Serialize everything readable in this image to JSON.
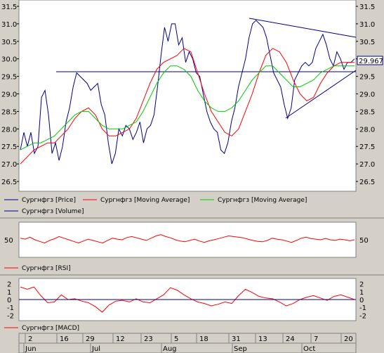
{
  "chart_data": [
    {
      "type": "line",
      "panel": "price",
      "ylim": [
        26.3,
        31.6
      ],
      "y_ticks": [
        "26.5",
        "27.0",
        "27.5",
        "28.0",
        "28.5",
        "29.0",
        "29.5",
        "30.0",
        "30.5",
        "31.0",
        "31.5"
      ],
      "last_value_label": "29.967",
      "grid": false,
      "legend_position": "bottom-left",
      "series": [
        {
          "name": "Сургнфгз [Price]",
          "color": "#00008b",
          "values": [
            27.4,
            27.9,
            27.5,
            27.9,
            27.3,
            27.5,
            28.9,
            29.1,
            28.4,
            27.3,
            27.6,
            27.1,
            27.5,
            28.2,
            28.6,
            29.2,
            29.6,
            29.5,
            29.4,
            29.3,
            29.1,
            29.2,
            29.3,
            28.7,
            28.4,
            27.6,
            27.0,
            27.3,
            28.0,
            27.8,
            28.1,
            28.0,
            27.7,
            27.9,
            28.2,
            27.6,
            28.0,
            28.1,
            28.4,
            29.2,
            30.1,
            30.9,
            30.5,
            31.0,
            31.0,
            30.4,
            30.6,
            29.9,
            30.2,
            30.0,
            29.6,
            29.5,
            29.0,
            28.5,
            28.2,
            28.0,
            27.9,
            27.4,
            27.3,
            27.6,
            28.2,
            28.6,
            29.2,
            29.6,
            30.0,
            30.6,
            31.0,
            31.1,
            31.0,
            30.9,
            30.6,
            30.1,
            29.6,
            29.4,
            29.2,
            28.7,
            28.3,
            28.6,
            29.4,
            29.6,
            29.8,
            29.9,
            29.8,
            29.9,
            30.3,
            30.5,
            30.7,
            30.4,
            30.0,
            29.8,
            30.2,
            30.0,
            29.7,
            29.9,
            29.9,
            30.0
          ]
        },
        {
          "name": "Сургнфгз [Moving Average]",
          "color": "#ff0000",
          "values": [
            27.0,
            27.2,
            27.4,
            27.5,
            27.6,
            27.6,
            27.8,
            28.0,
            28.3,
            28.5,
            28.6,
            28.4,
            28.0,
            27.8,
            27.8,
            27.9,
            28.0,
            28.3,
            28.8,
            29.3,
            29.7,
            29.9,
            30.0,
            30.1,
            30.3,
            30.2,
            29.6,
            29.0,
            28.5,
            28.2,
            27.9,
            27.8,
            28.0,
            28.5,
            29.0,
            29.6,
            30.1,
            30.3,
            30.2,
            29.9,
            29.4,
            29.0,
            28.8,
            28.9,
            29.3,
            29.6,
            29.8,
            29.9,
            29.9,
            29.9
          ]
        },
        {
          "name": "Сургнфгз [Moving Average]",
          "color": "#00cc00",
          "values": [
            27.4,
            27.5,
            27.6,
            27.6,
            27.7,
            27.8,
            28.0,
            28.2,
            28.4,
            28.5,
            28.5,
            28.3,
            28.1,
            28.0,
            28.0,
            28.0,
            28.1,
            28.2,
            28.5,
            28.9,
            29.3,
            29.6,
            29.8,
            29.8,
            29.7,
            29.5,
            29.1,
            28.8,
            28.6,
            28.5,
            28.5,
            28.6,
            28.8,
            29.1,
            29.4,
            29.6,
            29.8,
            29.8,
            29.6,
            29.4,
            29.2,
            29.2,
            29.3,
            29.4,
            29.6,
            29.7,
            29.8,
            29.8,
            29.8,
            29.8
          ]
        }
      ]
    },
    {
      "type": "line",
      "panel": "rsi",
      "y_ticks": [
        "50"
      ],
      "ylim": [
        0,
        100
      ],
      "series": [
        {
          "name": "Сургнфгз [RSI]",
          "color": "#ff0000",
          "values": [
            55,
            52,
            58,
            50,
            45,
            40,
            48,
            53,
            60,
            55,
            50,
            45,
            40,
            46,
            52,
            48,
            44,
            40,
            48,
            55,
            52,
            50,
            57,
            60,
            56,
            52,
            48,
            55,
            62,
            66,
            60,
            56,
            50,
            46,
            44,
            48,
            52,
            46,
            42,
            47,
            50,
            54,
            58,
            62,
            60,
            58,
            56,
            52,
            48,
            45,
            44,
            48,
            55,
            52,
            50,
            46,
            42,
            48,
            55,
            58,
            54,
            52,
            50,
            54,
            50,
            48,
            52,
            50,
            47,
            50
          ]
        }
      ]
    },
    {
      "type": "line",
      "panel": "macd",
      "ylim": [
        -2.5,
        2.5
      ],
      "y_ticks": [
        "2",
        "1",
        "0",
        "-1",
        "-2"
      ],
      "series": [
        {
          "name": "Сургнфгз [MACD]",
          "color": "#ff0000",
          "values": [
            1.6,
            1.3,
            1.6,
            0.5,
            -0.4,
            -0.3,
            0.6,
            0.0,
            0.1,
            -0.2,
            -0.4,
            -0.9,
            -1.6,
            -0.7,
            -0.2,
            -0.1,
            -0.3,
            0.1,
            -0.3,
            -0.4,
            0.1,
            0.6,
            1.5,
            1.2,
            0.6,
            0.1,
            -0.3,
            -0.5,
            -0.8,
            -0.6,
            -0.3,
            -0.5,
            0.5,
            1.3,
            0.9,
            0.4,
            0.2,
            0.1,
            -0.3,
            -0.8,
            -0.5,
            0.0,
            0.3,
            0.5,
            0.2,
            -0.1,
            0.4,
            0.6,
            0.3,
            0.0
          ]
        }
      ]
    },
    {
      "type": "bar",
      "panel": "volume",
      "series": [
        {
          "name": "Сургнфгз [Volume]",
          "color": "#00008b",
          "values": []
        }
      ]
    }
  ],
  "x_axis": {
    "days": [
      "2",
      "16",
      "29",
      "12",
      "23",
      "5",
      "18",
      "31",
      "13",
      "24",
      "7",
      "20"
    ],
    "months": [
      "Jun",
      "Jul",
      "Aug",
      "Sep",
      "Oct"
    ]
  }
}
